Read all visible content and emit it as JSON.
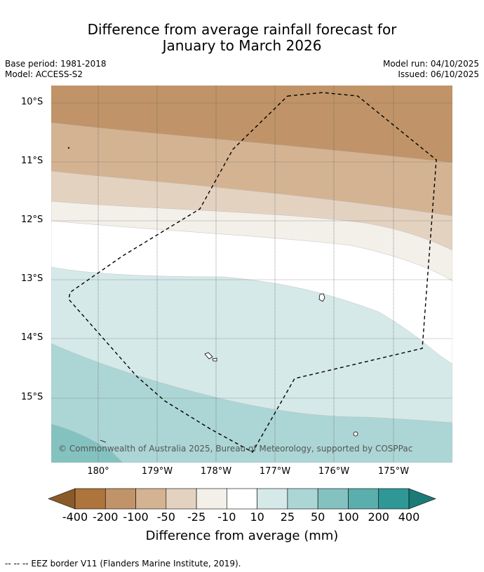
{
  "title": {
    "line1": "Difference from average rainfall forecast for",
    "line2": "January to March 2026"
  },
  "meta": {
    "base_period": "Base period: 1981-2018",
    "model": "Model: ACCESS-S2",
    "model_run": "Model run: 04/10/2025",
    "issued": "Issued: 06/10/2025"
  },
  "map": {
    "lat_labels": [
      "10°S",
      "11°S",
      "12°S",
      "13°S",
      "14°S",
      "15°S"
    ],
    "lon_labels": [
      "180°",
      "179°W",
      "178°W",
      "177°W",
      "176°W",
      "175°W"
    ],
    "credit": "© Commonwealth of Australia 2025, Bureau of Meteorology, supported by COSPPac",
    "zones": [
      {
        "category": "-100 to -50",
        "color": "#c09468"
      },
      {
        "category": "-50 to -25",
        "color": "#d4b393"
      },
      {
        "category": "-25 to -10",
        "color": "#e4d2c0"
      },
      {
        "category": "-10 to 10",
        "color": "#f3efe9"
      },
      {
        "category": "10 to 25",
        "color": "#ffffff"
      },
      {
        "category": "25 to 50",
        "color": "#d5e9e8"
      },
      {
        "category": "50 to 100",
        "color": "#acd6d5"
      },
      {
        "category": "100 to 200",
        "color": "#84c2c0"
      }
    ]
  },
  "colorbar": {
    "ticks": [
      "-400",
      "-200",
      "-100",
      "-50",
      "-25",
      "-10",
      "10",
      "25",
      "50",
      "100",
      "200",
      "400"
    ],
    "colors": [
      "#8b5a2b",
      "#ad743c",
      "#c09468",
      "#d4b393",
      "#e4d2c0",
      "#f3efe9",
      "#ffffff",
      "#d5e9e8",
      "#acd6d5",
      "#84c2c0",
      "#5aaeac",
      "#2f9896",
      "#1c7a78"
    ],
    "label": "Difference from average (mm)"
  },
  "footer": "--  --  -- EEZ border V11 (Flanders Marine Institute, 2019)."
}
